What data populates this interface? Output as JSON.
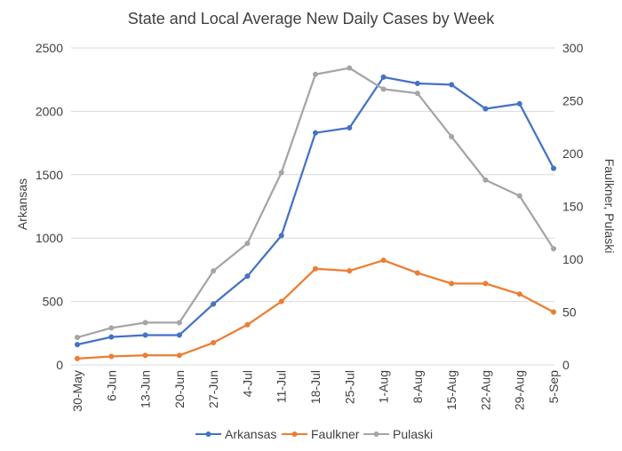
{
  "chart_data": {
    "type": "line",
    "title": "State and Local Average New Daily Cases by Week",
    "categories": [
      "30-May",
      "6-Jun",
      "13-Jun",
      "20-Jun",
      "27-Jun",
      "4-Jul",
      "11-Jul",
      "18-Jul",
      "25-Jul",
      "1-Aug",
      "8-Aug",
      "15-Aug",
      "22-Aug",
      "29-Aug",
      "5-Sep"
    ],
    "y_left": {
      "label": "Arkansas",
      "range": [
        0,
        2500
      ],
      "ticks": [
        "0",
        "500",
        "1000",
        "1500",
        "2000",
        "2500"
      ],
      "tick_values": [
        0,
        500,
        1000,
        1500,
        2000,
        2500
      ]
    },
    "y_right": {
      "label": "Faulkner, Pulaski",
      "range": [
        0,
        300
      ],
      "ticks": [
        "0",
        "50",
        "100",
        "150",
        "200",
        "250",
        "300"
      ],
      "tick_values": [
        0,
        50,
        100,
        150,
        200,
        250,
        300
      ]
    },
    "grid": true,
    "legend_position": "bottom",
    "series": [
      {
        "name": "Arkansas",
        "axis": "left",
        "color": "#4472C4",
        "values": [
          160,
          220,
          235,
          235,
          480,
          700,
          1020,
          1830,
          1870,
          2270,
          2220,
          2210,
          2020,
          2060,
          1550
        ]
      },
      {
        "name": "Faulkner",
        "axis": "right",
        "color": "#ED7D31",
        "values": [
          6,
          8,
          9,
          9,
          21,
          38,
          60,
          91,
          89,
          99,
          87,
          77,
          77,
          67,
          50
        ]
      },
      {
        "name": "Pulaski",
        "axis": "right",
        "color": "#A5A5A5",
        "values": [
          26,
          35,
          40,
          40,
          89,
          115,
          182,
          275,
          281,
          261,
          257,
          216,
          175,
          160,
          110
        ]
      }
    ]
  }
}
